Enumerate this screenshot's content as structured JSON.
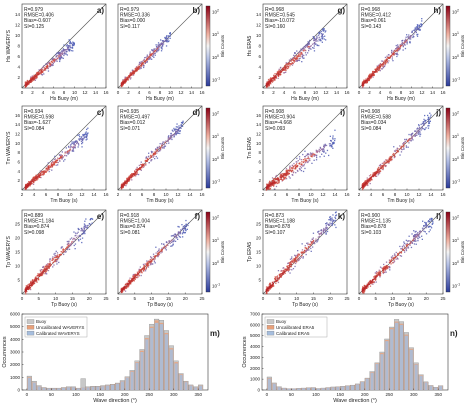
{
  "panels": [
    {
      "id": "a",
      "row": 0,
      "col": 0,
      "stats": [
        "R=0.979",
        "RMSE=0.406",
        "Bias=-0.607",
        "SI=0.125"
      ],
      "xlabel": "Hs Buoy (m)",
      "ylabel": "Hs WAVERYS",
      "xticks": [
        "0",
        "2",
        "4",
        "6",
        "8",
        "10",
        "12",
        "14",
        "16"
      ],
      "yticks": [
        "2",
        "4",
        "6",
        "8",
        "10",
        "12",
        "14"
      ]
    },
    {
      "id": "b",
      "row": 0,
      "col": 1,
      "stats": [
        "R=0.979",
        "RMSE=0.336",
        "Bias=0.000",
        "SI=0.117"
      ],
      "xlabel": "Hs Buoy (m)",
      "ylabel": "",
      "xticks": [
        "0",
        "2",
        "4",
        "6",
        "8",
        "10",
        "12",
        "14",
        "16"
      ],
      "yticks": []
    },
    {
      "id": "g",
      "row": 0,
      "col": 2,
      "stats": [
        "R=0.968",
        "RMSE=0.545",
        "Bias=-10.072",
        "SI=0.160"
      ],
      "xlabel": "Hs Buoy (m)",
      "ylabel": "Hs ERA5",
      "xticks": [
        "0",
        "2",
        "4",
        "6",
        "8",
        "10",
        "12",
        "14",
        "16"
      ],
      "yticks": [
        "2",
        "4",
        "6",
        "8",
        "10",
        "12",
        "14"
      ]
    },
    {
      "id": "h",
      "row": 0,
      "col": 3,
      "stats": [
        "R=0.968",
        "RMSE=0.412",
        "Bias=0.061",
        "SI=0.143"
      ],
      "xlabel": "Hs Buoy (m)",
      "ylabel": "",
      "xticks": [
        "0",
        "2",
        "4",
        "6",
        "8",
        "10",
        "12",
        "14",
        "16"
      ],
      "yticks": []
    },
    {
      "id": "c",
      "row": 1,
      "col": 0,
      "stats": [
        "R=0.934",
        "RMSE=0.598",
        "Bias=-1.627",
        "SI=0.084"
      ],
      "xlabel": "Tm Buoy (s)",
      "ylabel": "Tm WAVERYS",
      "xticks": [
        "2",
        "4",
        "6",
        "8",
        "10",
        "12",
        "14",
        "16"
      ],
      "yticks": [
        "2",
        "4",
        "6",
        "8",
        "10",
        "12",
        "14",
        "16"
      ]
    },
    {
      "id": "d",
      "row": 1,
      "col": 1,
      "stats": [
        "R=0.935",
        "RMSE=0.497",
        "Bias=0.012",
        "SI=0.071"
      ],
      "xlabel": "Tm Buoy (s)",
      "ylabel": "",
      "xticks": [
        "2",
        "4",
        "6",
        "8",
        "10",
        "12",
        "14",
        "16"
      ],
      "yticks": []
    },
    {
      "id": "i",
      "row": 1,
      "col": 2,
      "stats": [
        "R=0.908",
        "RMSE=0.904",
        "Bias=-4.668",
        "SI=0.093"
      ],
      "xlabel": "Tm Buoy (s)",
      "ylabel": "Tm ERA5",
      "xticks": [
        "2",
        "4",
        "6",
        "8",
        "10",
        "12",
        "14",
        "16"
      ],
      "yticks": [
        "2",
        "4",
        "6",
        "8",
        "10",
        "12",
        "14",
        "16"
      ]
    },
    {
      "id": "j",
      "row": 1,
      "col": 3,
      "stats": [
        "R=0.908",
        "RMSE=0.588",
        "Bias=0.034",
        "SI=0.084"
      ],
      "xlabel": "Tm Buoy (s)",
      "ylabel": "",
      "xticks": [
        "2",
        "4",
        "6",
        "8",
        "10",
        "12",
        "14",
        "16"
      ],
      "yticks": []
    },
    {
      "id": "e",
      "row": 2,
      "col": 0,
      "stats": [
        "R=0.889",
        "RMSE=1.184",
        "Bias=0.874",
        "SI=0.098"
      ],
      "xlabel": "Tp Buoy (s)",
      "ylabel": "Tp WAVERYS",
      "xticks": [
        "0",
        "5",
        "10",
        "15",
        "20",
        "25"
      ],
      "yticks": [
        "5",
        "10",
        "15",
        "20",
        "25"
      ]
    },
    {
      "id": "f",
      "row": 2,
      "col": 1,
      "stats": [
        "R=0.918",
        "RMSE=1.004",
        "Bias=0.874",
        "SI=0.081"
      ],
      "xlabel": "Tp Buoy (s)",
      "ylabel": "",
      "xticks": [
        "0",
        "5",
        "10",
        "15",
        "20",
        "25"
      ],
      "yticks": []
    },
    {
      "id": "k",
      "row": 2,
      "col": 2,
      "stats": [
        "R=0.873",
        "RMSE=1.188",
        "Bias=0.878",
        "SI=0.107"
      ],
      "xlabel": "Tp Buoy (s)",
      "ylabel": "Tp ERA5",
      "xticks": [
        "0",
        "5",
        "10",
        "15",
        "20",
        "25"
      ],
      "yticks": [
        "5",
        "10",
        "15",
        "20",
        "25"
      ]
    },
    {
      "id": "l",
      "row": 2,
      "col": 3,
      "stats": [
        "R=0.900",
        "RMSE=1.135",
        "Bias=0.878",
        "SI=0.103"
      ],
      "xlabel": "Tp Buoy (s)",
      "ylabel": "",
      "xticks": [
        "0",
        "5",
        "10",
        "15",
        "20",
        "25"
      ],
      "yticks": []
    }
  ],
  "colorbars": [
    {
      "label": "Bin Counts",
      "ticks": [
        "10^2",
        "10^1",
        "10^0",
        "10^-1"
      ]
    },
    {
      "label": "Bin Counts",
      "ticks": [
        "10^2",
        "10^1",
        "10^0",
        "10^-1"
      ]
    }
  ],
  "histograms": [
    {
      "id": "m",
      "ylabel": "Occurrences",
      "xlabel": "Wave direction (°)",
      "yticks": [
        "0",
        "1000",
        "2000",
        "3000",
        "4000",
        "5000",
        "6000"
      ],
      "xticks": [
        "0",
        "50",
        "100",
        "150",
        "200",
        "250",
        "300",
        "350"
      ],
      "legend": [
        "Buoy",
        "Uncalibrated WAVERYS",
        "Calibrated WAVERYS"
      ]
    },
    {
      "id": "n",
      "ylabel": "Occurrences",
      "xlabel": "Wave direction (°)",
      "yticks": [
        "0",
        "1000",
        "2000",
        "3000",
        "4000",
        "5000",
        "6000",
        "7000"
      ],
      "xticks": [
        "0",
        "50",
        "100",
        "150",
        "200",
        "250",
        "300",
        "350"
      ],
      "legend": [
        "Buoy",
        "Uncalibrated ERA5",
        "Calibrated ERA5"
      ]
    }
  ],
  "colors": {
    "buoy": "#c8c8c8",
    "uncal": "#e8a07a",
    "cal": "#a6bede",
    "scatter_lo": "#4a5db8",
    "scatter_hi": "#b0171f"
  },
  "chart_data": [
    {
      "type": "scatter",
      "panel": "a",
      "xlim": [
        0,
        16
      ],
      "ylim": [
        0,
        16
      ],
      "trend": {
        "slope": 0.86,
        "spread": 0.55,
        "max": 10
      }
    },
    {
      "type": "scatter",
      "panel": "b",
      "xlim": [
        0,
        16
      ],
      "ylim": [
        0,
        16
      ],
      "trend": {
        "slope": 1.0,
        "spread": 0.5,
        "max": 10
      }
    },
    {
      "type": "scatter",
      "panel": "g",
      "xlim": [
        0,
        16
      ],
      "ylim": [
        0,
        16
      ],
      "trend": {
        "slope": 0.9,
        "spread": 0.75,
        "max": 12
      }
    },
    {
      "type": "scatter",
      "panel": "h",
      "xlim": [
        0,
        16
      ],
      "ylim": [
        0,
        16
      ],
      "trend": {
        "slope": 1.0,
        "spread": 0.6,
        "max": 12
      }
    },
    {
      "type": "scatter",
      "panel": "c",
      "xlim": [
        2,
        16
      ],
      "ylim": [
        2,
        16
      ],
      "trend": {
        "slope": 0.84,
        "spread": 0.55,
        "max": 13
      }
    },
    {
      "type": "scatter",
      "panel": "d",
      "xlim": [
        2,
        16
      ],
      "ylim": [
        2,
        16
      ],
      "trend": {
        "slope": 1.0,
        "spread": 0.5,
        "max": 13
      }
    },
    {
      "type": "scatter",
      "panel": "i",
      "xlim": [
        2,
        16
      ],
      "ylim": [
        2,
        16
      ],
      "trend": {
        "slope": 0.7,
        "spread": 0.75,
        "max": 14
      }
    },
    {
      "type": "scatter",
      "panel": "j",
      "xlim": [
        2,
        16
      ],
      "ylim": [
        2,
        16
      ],
      "trend": {
        "slope": 1.0,
        "spread": 0.6,
        "max": 14
      }
    },
    {
      "type": "scatter",
      "panel": "e",
      "xlim": [
        0,
        25
      ],
      "ylim": [
        0,
        25
      ],
      "trend": {
        "slope": 1.05,
        "spread": 1.2,
        "max": 21
      }
    },
    {
      "type": "scatter",
      "panel": "f",
      "xlim": [
        0,
        25
      ],
      "ylim": [
        0,
        25
      ],
      "trend": {
        "slope": 1.0,
        "spread": 1.0,
        "max": 21
      }
    },
    {
      "type": "scatter",
      "panel": "k",
      "xlim": [
        0,
        25
      ],
      "ylim": [
        0,
        25
      ],
      "trend": {
        "slope": 1.05,
        "spread": 1.3,
        "max": 22
      }
    },
    {
      "type": "scatter",
      "panel": "l",
      "xlim": [
        0,
        25
      ],
      "ylim": [
        0,
        25
      ],
      "trend": {
        "slope": 1.0,
        "spread": 1.1,
        "max": 22
      }
    },
    {
      "type": "bar",
      "panel": "m",
      "xlim": [
        -10,
        370
      ],
      "ylim": [
        0,
        6000
      ],
      "categories": [
        5,
        15,
        25,
        35,
        45,
        55,
        65,
        75,
        85,
        95,
        105,
        115,
        125,
        135,
        145,
        155,
        165,
        175,
        185,
        195,
        205,
        215,
        225,
        235,
        245,
        255,
        265,
        275,
        285,
        295,
        305,
        315,
        325,
        335,
        345,
        355
      ],
      "series": [
        {
          "name": "Buoy",
          "values": [
            1100,
            700,
            350,
            200,
            150,
            150,
            150,
            200,
            250,
            250,
            150,
            900,
            250,
            300,
            300,
            350,
            400,
            450,
            550,
            750,
            1050,
            1550,
            2300,
            3200,
            4300,
            5200,
            5600,
            5500,
            4700,
            3500,
            2300,
            1300,
            700,
            400,
            250,
            400
          ]
        },
        {
          "name": "Uncalibrated WAVERYS",
          "values": [
            1000,
            600,
            300,
            180,
            140,
            130,
            140,
            180,
            220,
            230,
            140,
            200,
            220,
            260,
            280,
            320,
            380,
            430,
            520,
            700,
            1000,
            1500,
            2200,
            3100,
            4100,
            5000,
            5500,
            5300,
            4500,
            3300,
            2200,
            1250,
            650,
            380,
            230,
            350
          ]
        },
        {
          "name": "Calibrated WAVERYS",
          "values": [
            950,
            580,
            290,
            170,
            130,
            120,
            130,
            170,
            210,
            220,
            130,
            190,
            210,
            250,
            270,
            300,
            360,
            410,
            500,
            680,
            980,
            1450,
            2150,
            3000,
            4000,
            4900,
            5300,
            5200,
            4400,
            3200,
            2100,
            1200,
            620,
            360,
            220,
            330
          ]
        }
      ]
    },
    {
      "type": "bar",
      "panel": "n",
      "xlim": [
        -10,
        370
      ],
      "ylim": [
        0,
        7000
      ],
      "categories": [
        5,
        15,
        25,
        35,
        45,
        55,
        65,
        75,
        85,
        95,
        105,
        115,
        125,
        135,
        145,
        155,
        165,
        175,
        185,
        195,
        205,
        215,
        225,
        235,
        245,
        255,
        265,
        275,
        285,
        295,
        305,
        315,
        325,
        335,
        345,
        355
      ],
      "series": [
        {
          "name": "Buoy",
          "values": [
            1200,
            650,
            300,
            180,
            130,
            130,
            150,
            180,
            220,
            230,
            140,
            180,
            230,
            280,
            300,
            340,
            400,
            450,
            560,
            780,
            1100,
            1700,
            2500,
            3500,
            4700,
            5800,
            6500,
            6300,
            5300,
            3900,
            2500,
            1400,
            750,
            420,
            260,
            400
          ]
        },
        {
          "name": "Uncalibrated ERA5",
          "values": [
            1100,
            600,
            280,
            170,
            120,
            120,
            140,
            170,
            210,
            220,
            130,
            170,
            220,
            260,
            290,
            330,
            380,
            430,
            540,
            760,
            1080,
            1650,
            2450,
            3400,
            4600,
            5700,
            6300,
            6100,
            5100,
            3800,
            2400,
            1350,
            720,
            400,
            250,
            380
          ]
        },
        {
          "name": "Calibrated ERA5",
          "values": [
            1050,
            580,
            270,
            160,
            115,
            115,
            130,
            160,
            200,
            210,
            125,
            165,
            210,
            250,
            280,
            320,
            370,
            420,
            520,
            740,
            1050,
            1600,
            2400,
            3300,
            4500,
            5600,
            6200,
            6000,
            5000,
            3700,
            2350,
            1300,
            700,
            390,
            240,
            370
          ]
        }
      ]
    }
  ]
}
